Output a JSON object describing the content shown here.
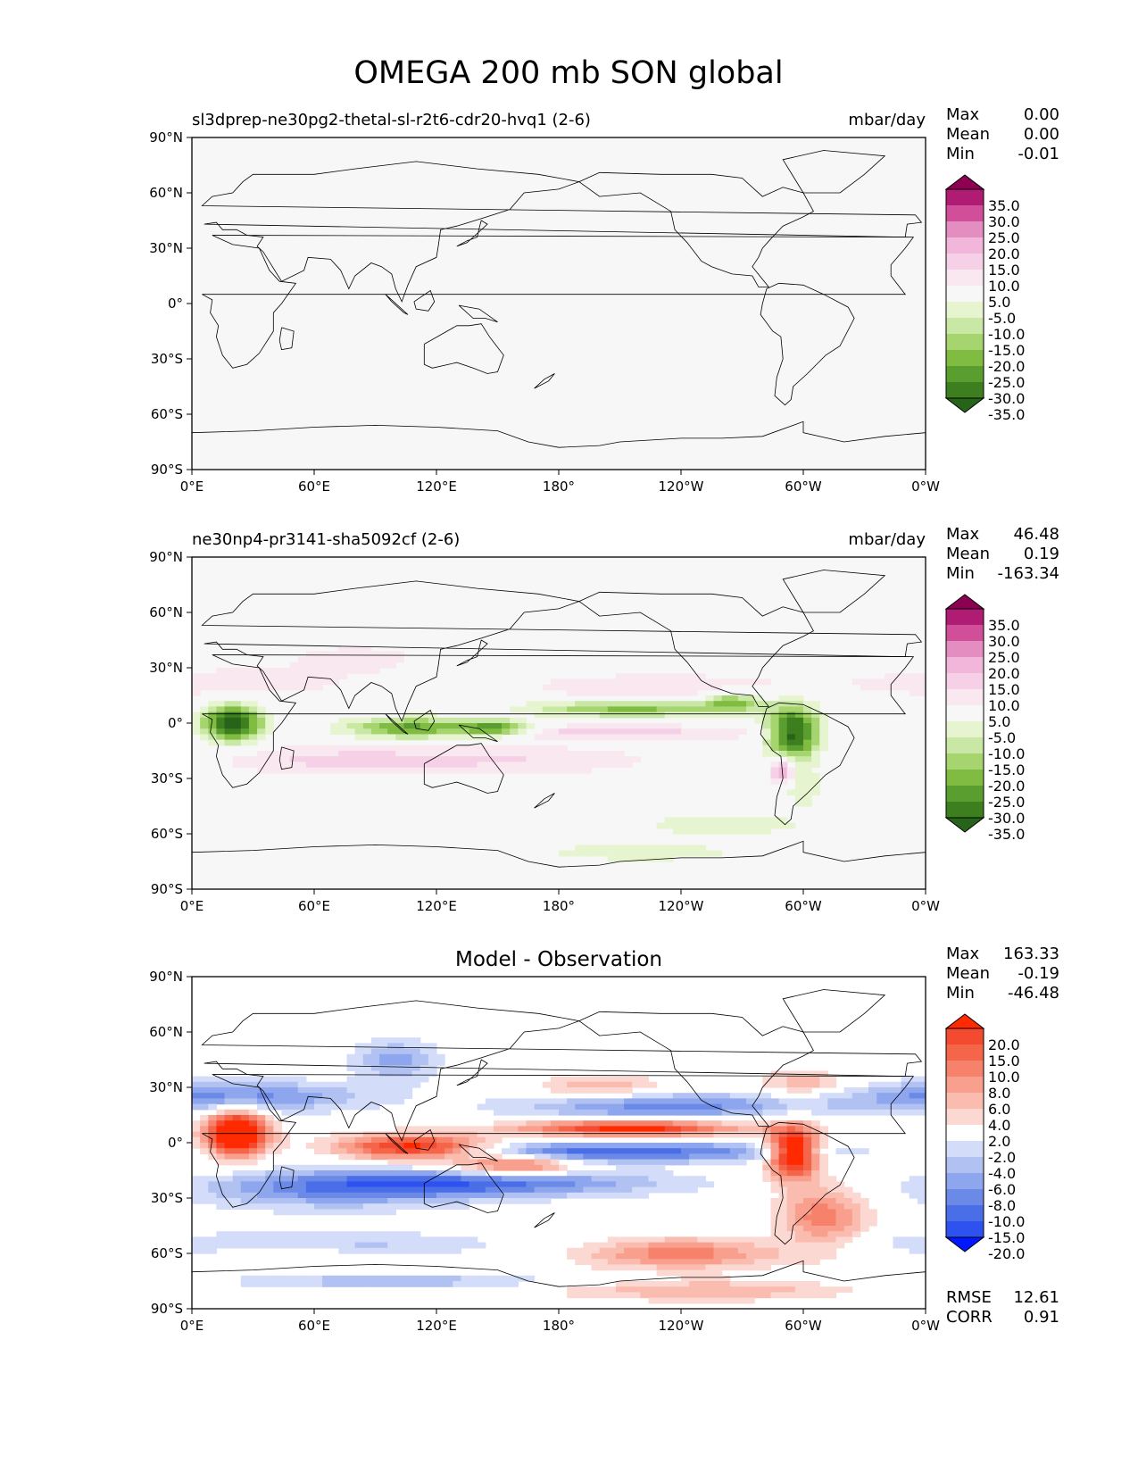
{
  "title": "OMEGA 200 mb SON global",
  "palettes": {
    "pg": [
      "#276419",
      "#3d7f1e",
      "#5a9e30",
      "#7fbc41",
      "#a6d56f",
      "#c9e8a5",
      "#e6f5d0",
      "#f7f7f7",
      "#f9e8f0",
      "#f5d0e6",
      "#f1b6da",
      "#e38dc1",
      "#d04f98",
      "#b01c74",
      "#8e0152"
    ],
    "bwr": [
      "#0018ff",
      "#2e52f0",
      "#4a6ee8",
      "#6b8ae8",
      "#8ea6ee",
      "#b0c1f2",
      "#d3dcf8",
      "#ffffff",
      "#fcd8d2",
      "#fbbcb0",
      "#f99f8e",
      "#f7826c",
      "#f5654a",
      "#f34a30",
      "#ff2a00"
    ]
  },
  "panels": [
    {
      "name": "test",
      "left_title": "sl3dprep-ne30pg2-thetal-sl-r2t6-cdr20-hvq1 (2-6)",
      "center_title": "",
      "units": "mbar/day",
      "stats": [
        {
          "label": "Max",
          "value": "0.00"
        },
        {
          "label": "Mean",
          "value": "0.00"
        },
        {
          "label": "Min",
          "value": "-0.01"
        }
      ],
      "palette": "pg",
      "colorbar_ticks": [
        "35.0",
        "30.0",
        "25.0",
        "20.0",
        "15.0",
        "10.0",
        "5.0",
        "-5.0",
        "-10.0",
        "-15.0",
        "-20.0",
        "-25.0",
        "-30.0",
        "-35.0"
      ],
      "field": "flat"
    },
    {
      "name": "reference",
      "left_title": "ne30np4-pr3141-sha5092cf (2-6)",
      "center_title": "",
      "units": "mbar/day",
      "stats": [
        {
          "label": "Max",
          "value": "46.48"
        },
        {
          "label": "Mean",
          "value": "0.19"
        },
        {
          "label": "Min",
          "value": "-163.34"
        }
      ],
      "palette": "pg",
      "colorbar_ticks": [
        "35.0",
        "30.0",
        "25.0",
        "20.0",
        "15.0",
        "10.0",
        "5.0",
        "-5.0",
        "-10.0",
        "-15.0",
        "-20.0",
        "-25.0",
        "-30.0",
        "-35.0"
      ],
      "field": "ref"
    },
    {
      "name": "difference",
      "left_title": "",
      "center_title": "Model - Observation",
      "units": "",
      "stats": [
        {
          "label": "Max",
          "value": "163.33"
        },
        {
          "label": "Mean",
          "value": "-0.19"
        },
        {
          "label": "Min",
          "value": "-46.48"
        }
      ],
      "extra_stats": [
        {
          "label": "RMSE",
          "value": "12.61"
        },
        {
          "label": "CORR",
          "value": "0.91"
        }
      ],
      "palette": "bwr",
      "colorbar_ticks": [
        "20.0",
        "15.0",
        "10.0",
        "8.0",
        "6.0",
        "4.0",
        "2.0",
        "-2.0",
        "-4.0",
        "-6.0",
        "-8.0",
        "-10.0",
        "-15.0",
        "-20.0"
      ],
      "field": "diff"
    }
  ],
  "axes": {
    "lat_ticks": [
      "90°N",
      "60°N",
      "30°N",
      "0°",
      "30°S",
      "60°S",
      "90°S"
    ],
    "lon_ticks": [
      "0°E",
      "60°E",
      "120°E",
      "180°",
      "120°W",
      "60°W",
      "0°W"
    ]
  }
}
